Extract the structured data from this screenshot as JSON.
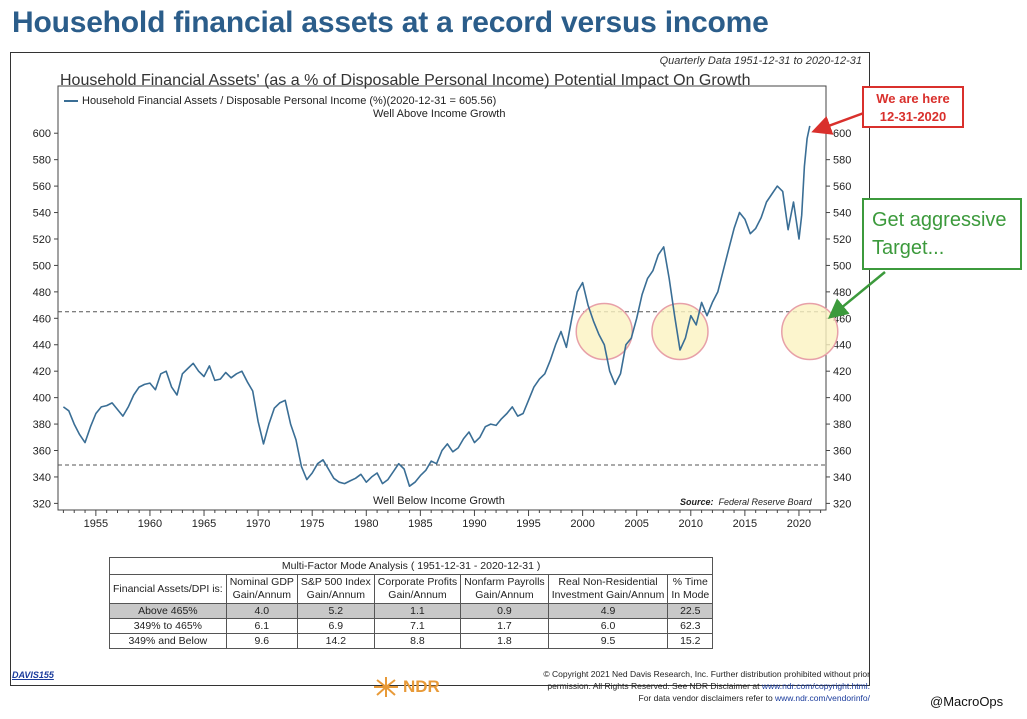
{
  "headline": "Household financial assets at a record versus income",
  "quarterly_note": "Quarterly Data 1951-12-31 to 2020-12-31",
  "chart_data": {
    "type": "line",
    "title": "Household Financial Assets' (as a % of Disposable Personal Income) Potential Impact On Growth",
    "legend": "Household Financial Assets / Disposable Personal Income (%)(2020-12-31 = 605.56)",
    "legend_placement": "top-left",
    "ylim": [
      315,
      610
    ],
    "xlim": [
      1951.5,
      2022.5
    ],
    "yticks": [
      320,
      340,
      360,
      380,
      400,
      420,
      440,
      460,
      480,
      500,
      520,
      540,
      560,
      580,
      600
    ],
    "xticks": [
      1955,
      1960,
      1965,
      1970,
      1975,
      1980,
      1985,
      1990,
      1995,
      2000,
      2005,
      2010,
      2015,
      2020
    ],
    "reference_lines": [
      465,
      349
    ],
    "upper_label": "Well Above Income Growth",
    "lower_label": "Well Below Income Growth",
    "source_label": "Source:",
    "source_value": "Federal Reserve Board",
    "series": [
      {
        "name": "Household Financial Assets / Disposable Personal Income (%)",
        "color": "#3a6e95",
        "points": [
          [
            1952.0,
            393
          ],
          [
            1952.5,
            390
          ],
          [
            1953.0,
            380
          ],
          [
            1953.5,
            372
          ],
          [
            1954.0,
            366
          ],
          [
            1954.5,
            378
          ],
          [
            1955.0,
            388
          ],
          [
            1955.5,
            393
          ],
          [
            1956.0,
            394
          ],
          [
            1956.5,
            396
          ],
          [
            1957.0,
            391
          ],
          [
            1957.5,
            386
          ],
          [
            1958.0,
            393
          ],
          [
            1958.5,
            402
          ],
          [
            1959.0,
            408
          ],
          [
            1959.5,
            410
          ],
          [
            1960.0,
            411
          ],
          [
            1960.5,
            406
          ],
          [
            1961.0,
            418
          ],
          [
            1961.5,
            420
          ],
          [
            1962.0,
            408
          ],
          [
            1962.5,
            402
          ],
          [
            1963.0,
            418
          ],
          [
            1963.5,
            422
          ],
          [
            1964.0,
            426
          ],
          [
            1964.5,
            420
          ],
          [
            1965.0,
            416
          ],
          [
            1965.5,
            424
          ],
          [
            1966.0,
            413
          ],
          [
            1966.5,
            414
          ],
          [
            1967.0,
            419
          ],
          [
            1967.5,
            415
          ],
          [
            1968.0,
            418
          ],
          [
            1968.5,
            420
          ],
          [
            1969.0,
            412
          ],
          [
            1969.5,
            405
          ],
          [
            1970.0,
            382
          ],
          [
            1970.5,
            365
          ],
          [
            1971.0,
            380
          ],
          [
            1971.5,
            392
          ],
          [
            1972.0,
            396
          ],
          [
            1972.5,
            398
          ],
          [
            1973.0,
            380
          ],
          [
            1973.5,
            368
          ],
          [
            1974.0,
            348
          ],
          [
            1974.5,
            338
          ],
          [
            1975.0,
            343
          ],
          [
            1975.5,
            350
          ],
          [
            1976.0,
            353
          ],
          [
            1976.5,
            346
          ],
          [
            1977.0,
            339
          ],
          [
            1977.5,
            336
          ],
          [
            1978.0,
            335
          ],
          [
            1978.5,
            337
          ],
          [
            1979.0,
            339
          ],
          [
            1979.5,
            342
          ],
          [
            1980.0,
            336
          ],
          [
            1980.5,
            340
          ],
          [
            1981.0,
            343
          ],
          [
            1981.5,
            335
          ],
          [
            1982.0,
            338
          ],
          [
            1982.5,
            344
          ],
          [
            1983.0,
            350
          ],
          [
            1983.5,
            346
          ],
          [
            1984.0,
            333
          ],
          [
            1984.5,
            336
          ],
          [
            1985.0,
            341
          ],
          [
            1985.5,
            345
          ],
          [
            1986.0,
            352
          ],
          [
            1986.5,
            350
          ],
          [
            1987.0,
            360
          ],
          [
            1987.5,
            365
          ],
          [
            1988.0,
            359
          ],
          [
            1988.5,
            362
          ],
          [
            1989.0,
            369
          ],
          [
            1989.5,
            374
          ],
          [
            1990.0,
            366
          ],
          [
            1990.5,
            370
          ],
          [
            1991.0,
            378
          ],
          [
            1991.5,
            380
          ],
          [
            1992.0,
            379
          ],
          [
            1992.5,
            384
          ],
          [
            1993.0,
            388
          ],
          [
            1993.5,
            393
          ],
          [
            1994.0,
            386
          ],
          [
            1994.5,
            388
          ],
          [
            1995.0,
            398
          ],
          [
            1995.5,
            408
          ],
          [
            1996.0,
            414
          ],
          [
            1996.5,
            418
          ],
          [
            1997.0,
            428
          ],
          [
            1997.5,
            440
          ],
          [
            1998.0,
            450
          ],
          [
            1998.5,
            438
          ],
          [
            1999.0,
            460
          ],
          [
            1999.5,
            480
          ],
          [
            2000.0,
            487
          ],
          [
            2000.5,
            470
          ],
          [
            2001.0,
            458
          ],
          [
            2001.5,
            448
          ],
          [
            2002.0,
            440
          ],
          [
            2002.5,
            420
          ],
          [
            2003.0,
            410
          ],
          [
            2003.5,
            418
          ],
          [
            2004.0,
            440
          ],
          [
            2004.5,
            445
          ],
          [
            2005.0,
            460
          ],
          [
            2005.5,
            478
          ],
          [
            2006.0,
            490
          ],
          [
            2006.5,
            496
          ],
          [
            2007.0,
            508
          ],
          [
            2007.5,
            514
          ],
          [
            2008.0,
            490
          ],
          [
            2008.5,
            462
          ],
          [
            2009.0,
            436
          ],
          [
            2009.5,
            445
          ],
          [
            2010.0,
            462
          ],
          [
            2010.5,
            455
          ],
          [
            2011.0,
            472
          ],
          [
            2011.5,
            462
          ],
          [
            2012.0,
            472
          ],
          [
            2012.5,
            480
          ],
          [
            2013.0,
            496
          ],
          [
            2013.5,
            512
          ],
          [
            2014.0,
            528
          ],
          [
            2014.5,
            540
          ],
          [
            2015.0,
            535
          ],
          [
            2015.5,
            524
          ],
          [
            2016.0,
            528
          ],
          [
            2016.5,
            536
          ],
          [
            2017.0,
            548
          ],
          [
            2017.5,
            554
          ],
          [
            2018.0,
            560
          ],
          [
            2018.5,
            556
          ],
          [
            2019.0,
            527
          ],
          [
            2019.5,
            548
          ],
          [
            2020.0,
            520
          ],
          [
            2020.25,
            538
          ],
          [
            2020.5,
            575
          ],
          [
            2020.75,
            596
          ],
          [
            2021.0,
            605.56
          ]
        ]
      }
    ],
    "highlight_circles": [
      [
        2002.0,
        450
      ],
      [
        2009.0,
        450
      ],
      [
        2021.0,
        450
      ]
    ]
  },
  "callouts": {
    "here_line1": "We are here",
    "here_line2": "12-31-2020",
    "aggr_line1": "Get aggressive",
    "aggr_line2": "Target..."
  },
  "table": {
    "caption": "Multi-Factor Mode Analysis ( 1951-12-31 - 2020-12-31 )",
    "row_header": "Financial Assets/DPI is:",
    "columns": [
      [
        "Nominal GDP",
        "Gain/Annum"
      ],
      [
        "S&P 500 Index",
        "Gain/Annum"
      ],
      [
        "Corporate Profits",
        "Gain/Annum"
      ],
      [
        "Nonfarm Payrolls",
        "Gain/Annum"
      ],
      [
        "Real Non-Residential",
        "Investment Gain/Annum"
      ],
      [
        "% Time",
        "In Mode"
      ]
    ],
    "rows": [
      [
        "Above 465%",
        "4.0",
        "5.2",
        "1.1",
        "0.9",
        "4.9",
        "22.5"
      ],
      [
        "349% to 465%",
        "6.1",
        "6.9",
        "7.1",
        "1.7",
        "6.0",
        "62.3"
      ],
      [
        "349% and Below",
        "9.6",
        "14.2",
        "8.8",
        "1.8",
        "9.5",
        "15.2"
      ]
    ]
  },
  "footer": {
    "davis": "DAVIS155",
    "copyright_1": "© Copyright 2021 Ned Davis Research, Inc. Further distribution prohibited without prior",
    "copyright_2a": "permission. All Rights Reserved. See NDR Disclaimer at ",
    "copyright_2b": "www.ndr.com/copyright.html.",
    "copyright_3a": "For data vendor disclaimers refer to ",
    "copyright_3b": "www.ndr.com/vendorinfo/",
    "logo_text": "NDR",
    "handle": "@MacroOps"
  },
  "colors": {
    "headline": "#2b5d8a",
    "line": "#3a6e95",
    "here": "#d9302c",
    "aggressive": "#3c9a3c",
    "circle_fill": "#fbf3c0",
    "circle_stroke": "#e7a0a8"
  }
}
